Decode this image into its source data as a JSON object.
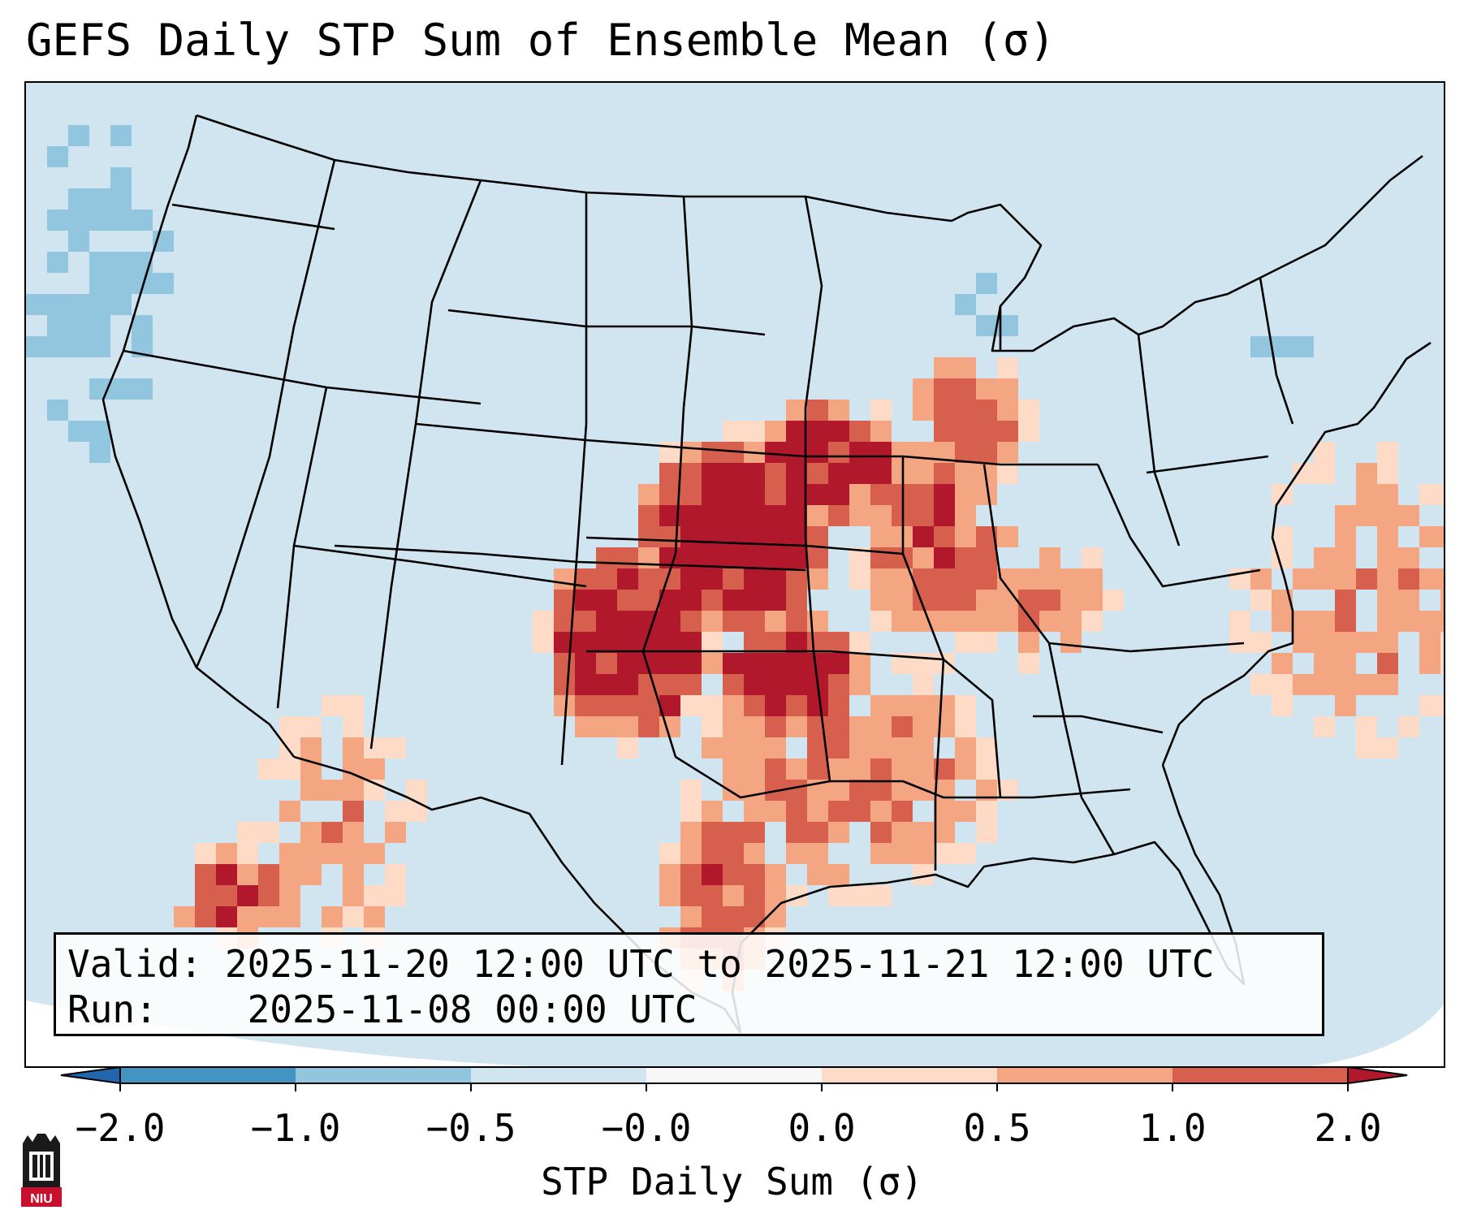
{
  "title": "GEFS Daily STP Sum of Ensemble Mean (σ)",
  "info": {
    "valid_label": "Valid:",
    "valid_value": "2025-11-20 12:00 UTC to 2025-11-21 12:00 UTC",
    "run_label": "Run:",
    "run_value": "2025-11-08 00:00 UTC"
  },
  "colorbar": {
    "label": "STP Daily Sum (σ)",
    "ticks": [
      "−2.0",
      "−1.0",
      "−0.5",
      "−0.0",
      "0.0",
      "0.5",
      "1.0",
      "2.0"
    ],
    "colors": [
      "#4393c3",
      "#92c5de",
      "#d1e5f0",
      "#f7f7f7",
      "#fddbc7",
      "#f4a582",
      "#d6604d"
    ],
    "extend_low_color": "#2166ac",
    "extend_high_color": "#b2182b"
  },
  "logo": {
    "text": "NIU"
  },
  "map": {
    "projection": "Lambert Conformal (CONUS)",
    "background_color": "#d1e5f0",
    "highlight_regions": [
      "Kansas",
      "Nebraska",
      "Oklahoma",
      "Texas Panhandle",
      "Iowa",
      "Missouri",
      "Arkansas",
      "Louisiana",
      "East Texas",
      "Illinois",
      "Indiana",
      "Michigan",
      "Wisconsin"
    ]
  }
}
